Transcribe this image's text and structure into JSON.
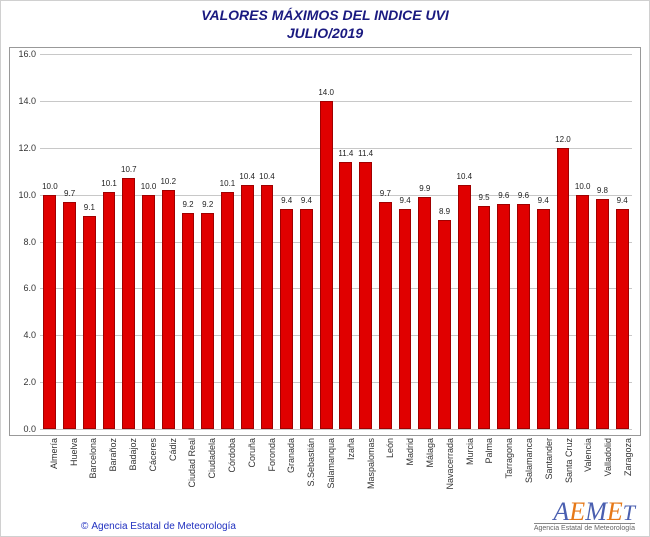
{
  "title_line1": "VALORES MÁXIMOS DEL INDICE UVI",
  "title_line2": "JULIO/2019",
  "chart": {
    "type": "bar",
    "bar_color": "#e00000",
    "bar_border_color": "#a00000",
    "grid_color": "#c8c8c8",
    "background_color": "#ffffff",
    "title_color": "#1a1a80",
    "title_fontsize": 14,
    "label_fontsize": 8,
    "axis_fontsize": 9,
    "bar_width": 0.65,
    "ylim": [
      0.0,
      16.0
    ],
    "yticks": [
      0.0,
      2.0,
      4.0,
      6.0,
      8.0,
      10.0,
      12.0,
      14.0,
      16.0
    ],
    "categories": [
      "Almería",
      "Huelva",
      "Barcelona",
      "Barañoz",
      "Badajoz",
      "Cáceres",
      "Cádiz",
      "Ciudad Real",
      "Ciudadela",
      "Córdoba",
      "Coruña",
      "Foronda",
      "Granada",
      "S.Sebastián",
      "Salamanqua",
      "Izaña",
      "Maspalomas",
      "León",
      "Madrid",
      "Málaga",
      "Navacerrada",
      "Murcia",
      "Palma",
      "Tarragona",
      "Salamanca",
      "Santander",
      "Santa Cruz",
      "Valencia",
      "Valladolid",
      "Zaragoza"
    ],
    "values": [
      10.0,
      9.7,
      9.1,
      10.1,
      10.7,
      10.0,
      10.2,
      9.2,
      9.2,
      10.1,
      10.4,
      10.4,
      9.4,
      9.4,
      14.0,
      11.4,
      11.4,
      9.7,
      9.4,
      9.9,
      8.9,
      10.4,
      9.5,
      9.6,
      9.6,
      9.4,
      12.0,
      10.0,
      9.8,
      9.4
    ]
  },
  "credit_text": "Agencia Estatal de Meteorología",
  "logo_text": "AEMET",
  "logo_sub": "Agencia Estatal de Meteorología"
}
